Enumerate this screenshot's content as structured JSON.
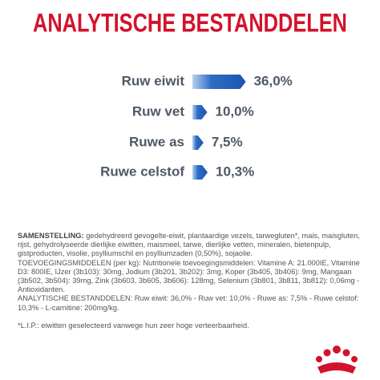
{
  "chart_data": {
    "type": "bar",
    "orientation": "horizontal",
    "title": "ANALYTISCHE BESTANDDELEN",
    "categories": [
      "Ruw eiwit",
      "Ruw vet",
      "Ruwe as",
      "Ruwe celstof"
    ],
    "values": [
      36.0,
      10.0,
      7.5,
      10.3
    ],
    "value_labels": [
      "36,0%",
      "10,0%",
      "7,5%",
      "10,3%"
    ],
    "color": "#2f6dc4"
  },
  "composition": {
    "heading": "SAMENSTELLING:",
    "text": "gedehydreerd gevogelte-eiwit, plantaardige vezels, tarwegluten*, mais, maisgluten, rijst, gehydrolyseerde dierlijke eiwitten, maismeel, tarwe, dierlijke vetten, mineralen, bietenpulp, gistproducten, visolie, psylliumschil en psylliumzaden (0,50%), sojaolie.",
    "additives": "TOEVOEGINGSMIDDELEN (per kg): Nutritionele toevoegingsmiddelen: Vitamine A: 21.000IE, Vitamine D3: 800IE, IJzer (3b103): 30mg, Jodium (3b201, 3b202): 3mg, Koper (3b405, 3b406): 9mg, Mangaan (3b502, 3b504): 39mg, Zink (3b603, 3b605, 3b606): 128mg, Selenium (3b801, 3b811, 3b812): 0,06mg - Antioxidanten.",
    "analysis": "ANALYTISCHE BESTANDDELEN: Ruw eiwit: 36,0% - Ruw vet: 10,0% - Ruwe as: 7,5% - Ruwe celstof: 10,3% - L-carnitine: 200mg/kg.",
    "footnote": "*L.I.P.: eiwitten geselecteerd vanwege hun zeer hoge verteerbaarheid."
  }
}
